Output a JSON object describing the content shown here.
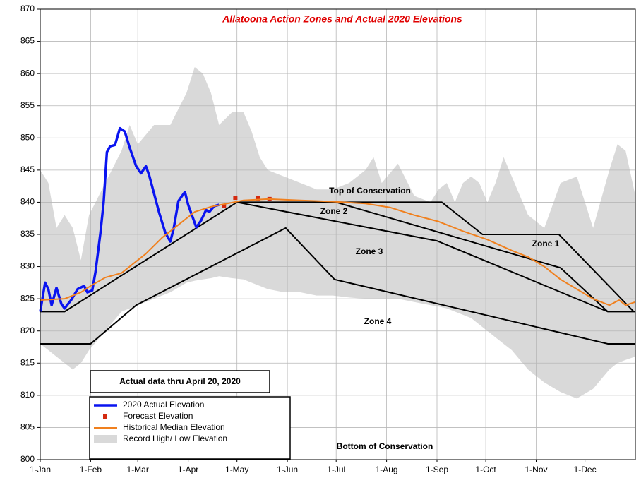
{
  "chart_data": {
    "type": "line",
    "title": "Allatoona Action Zones and Actual 2020 Elevations",
    "xlim": [
      0,
      366
    ],
    "ylim": [
      800,
      870
    ],
    "xticks": [
      {
        "value": 0,
        "label": "1-Jan"
      },
      {
        "value": 31,
        "label": "1-Feb"
      },
      {
        "value": 60,
        "label": "1-Mar"
      },
      {
        "value": 91,
        "label": "1-Apr"
      },
      {
        "value": 121,
        "label": "1-May"
      },
      {
        "value": 152,
        "label": "1-Jun"
      },
      {
        "value": 182,
        "label": "1-Jul"
      },
      {
        "value": 213,
        "label": "1-Aug"
      },
      {
        "value": 244,
        "label": "1-Sep"
      },
      {
        "value": 274,
        "label": "1-Oct"
      },
      {
        "value": 305,
        "label": "1-Nov"
      },
      {
        "value": 335,
        "label": "1-Dec"
      }
    ],
    "yticks": [
      800,
      805,
      810,
      815,
      820,
      825,
      830,
      835,
      840,
      845,
      850,
      855,
      860,
      865,
      870
    ],
    "grid": true,
    "band": {
      "name": "Record High/ Low Elevation",
      "color": "#d9d9d9",
      "x": [
        0,
        5,
        10,
        15,
        20,
        25,
        30,
        40,
        50,
        55,
        60,
        70,
        80,
        90,
        95,
        100,
        105,
        110,
        118,
        125,
        130,
        135,
        140,
        150,
        160,
        170,
        180,
        190,
        200,
        205,
        210,
        220,
        230,
        240,
        245,
        250,
        255,
        260,
        265,
        270,
        275,
        280,
        285,
        290,
        300,
        310,
        320,
        330,
        340,
        350,
        355,
        360,
        366
      ],
      "high": [
        845,
        843,
        836,
        838,
        836,
        831,
        838,
        843,
        848,
        852,
        849,
        852,
        852,
        857,
        861,
        860,
        857,
        852,
        854,
        854,
        851,
        847,
        845,
        844,
        843,
        842,
        842,
        843,
        845,
        847,
        843,
        846,
        841,
        840,
        842,
        843,
        840,
        843,
        844,
        843,
        840,
        843,
        847,
        844,
        838,
        836,
        843,
        844,
        836,
        845,
        849,
        848,
        841
      ],
      "low": [
        818,
        817,
        816,
        815,
        814,
        815,
        817,
        820,
        823,
        823.5,
        824,
        825,
        826,
        827.5,
        827.8,
        828,
        828.2,
        828.5,
        828.2,
        828,
        827.5,
        827,
        826.5,
        826,
        826,
        825.5,
        825.5,
        825.2,
        825,
        825,
        825,
        825,
        824.5,
        824,
        823.8,
        823.5,
        823,
        822.5,
        822,
        821,
        820,
        819,
        818,
        817,
        814,
        812,
        810.5,
        809.5,
        811,
        814,
        815,
        815.5,
        816
      ]
    },
    "series": [
      {
        "name": "2020 Actual Elevation",
        "color": "#0a14f0",
        "x": [
          0,
          3,
          5,
          7,
          10,
          13,
          15,
          19,
          23,
          27,
          29,
          32,
          34,
          37,
          39,
          41,
          43,
          46,
          49,
          52,
          55,
          59,
          62,
          65,
          67,
          73,
          77,
          80,
          82,
          85,
          89,
          91,
          96,
          99,
          102,
          104,
          107,
          110
        ],
        "values": [
          823,
          827.5,
          826.5,
          824,
          826.7,
          824.2,
          823.5,
          824.8,
          826.5,
          827,
          826,
          826.3,
          829.2,
          835.2,
          840,
          847.8,
          848.7,
          848.9,
          851.5,
          851,
          848.5,
          845.6,
          844.5,
          845.6,
          844.2,
          838.5,
          835.2,
          833.9,
          835.8,
          840.2,
          841.6,
          839.6,
          836.1,
          837.2,
          838.8,
          838.5,
          839.4,
          839.6
        ]
      },
      {
        "name": "Forecast Elevation",
        "color": "#d42a10",
        "marker": "square",
        "x": [
          113,
          120,
          134,
          141
        ],
        "values": [
          839.4,
          840.7,
          840.6,
          840.5
        ]
      },
      {
        "name": "Historical Median Elevation",
        "color": "#f0801e",
        "x": [
          0,
          15,
          25,
          31,
          40,
          50,
          55,
          65,
          75,
          85,
          95,
          105,
          115,
          125,
          140,
          160,
          180,
          200,
          215,
          230,
          245,
          260,
          275,
          290,
          300,
          310,
          320,
          330,
          340,
          350,
          356,
          360,
          366
        ],
        "values": [
          824.8,
          825,
          826,
          827,
          828.3,
          829,
          830,
          832,
          834.5,
          836.5,
          838.5,
          839.3,
          839.8,
          840.3,
          840.5,
          840.3,
          840.1,
          839.8,
          839.2,
          838,
          837,
          835.5,
          834.2,
          832.5,
          831.5,
          830,
          828,
          826.5,
          825,
          824,
          824.8,
          824,
          824.5
        ]
      }
    ],
    "boundaries": [
      {
        "color": "#000000",
        "x": [
          0,
          15,
          121,
          247,
          272,
          319,
          365
        ],
        "values": [
          823,
          823,
          840,
          840,
          835,
          835,
          823
        ]
      },
      {
        "color": "#000000",
        "x": [
          121,
          244,
          349,
          366
        ],
        "values": [
          840,
          834,
          823,
          823
        ]
      },
      {
        "color": "#000000",
        "x": [
          182,
          320,
          349
        ],
        "values": [
          840,
          829.8,
          823
        ]
      },
      {
        "color": "#000000",
        "x": [
          0,
          31,
          59,
          151,
          181,
          349,
          366
        ],
        "values": [
          818,
          818,
          824,
          836,
          828,
          818,
          818
        ]
      }
    ],
    "annotations": [
      "Top of Conservation",
      "Zone 2",
      "Zone 3",
      "Zone 1",
      "Zone 4",
      "Bottom of Conservation"
    ],
    "note": "Actual data thru April 20, 2020"
  }
}
